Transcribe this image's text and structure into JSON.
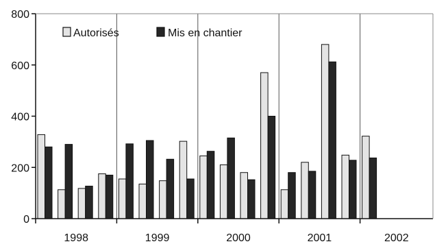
{
  "chart_data": {
    "type": "bar",
    "ylim": [
      0,
      800
    ],
    "y_ticks": [
      0,
      200,
      400,
      600,
      800
    ],
    "year_labels": [
      "1998",
      "1999",
      "2000",
      "2001",
      "2002"
    ],
    "quarters_per_year": 4,
    "grid": "vertical lines at year boundaries",
    "legend": "top-left",
    "series": [
      {
        "name": "Autorisés",
        "color": "#e4e4e4",
        "values": [
          328,
          113,
          118,
          175,
          155,
          135,
          148,
          302,
          245,
          210,
          180,
          570,
          113,
          220,
          680,
          248,
          322
        ]
      },
      {
        "name": "Mis en chantier",
        "color": "#262626",
        "values": [
          280,
          290,
          127,
          170,
          292,
          305,
          232,
          155,
          263,
          315,
          152,
          400,
          180,
          185,
          612,
          228,
          237
        ]
      }
    ]
  }
}
